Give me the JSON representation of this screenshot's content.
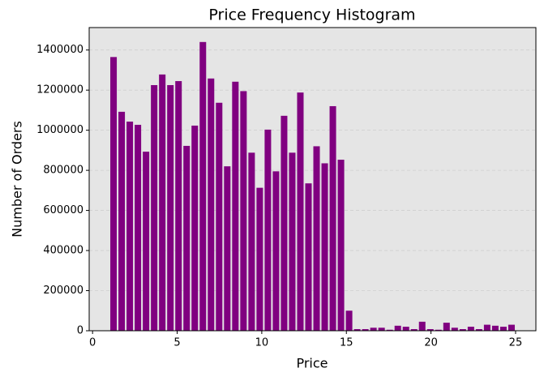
{
  "chart_data": {
    "type": "histogram",
    "title": "Price Frequency Histogram",
    "x_label": "Price",
    "y_label": "Number of Orders",
    "bins": [
      1,
      1.48,
      1.96,
      2.44,
      2.92,
      3.4,
      3.88,
      4.36,
      4.84,
      5.32,
      5.8,
      6.28,
      6.76,
      7.24,
      7.72,
      8.2,
      8.68,
      9.16,
      9.64,
      10.12,
      10.6,
      11.08,
      11.56,
      12.04,
      12.52,
      13,
      13.48,
      13.96,
      14.44,
      14.92,
      15.4,
      15.88,
      16.36,
      16.84,
      17.32,
      17.8,
      18.28,
      18.76,
      19.24,
      19.72,
      20.2,
      20.68,
      21.16,
      21.64,
      22.12,
      22.6,
      23.08,
      23.56,
      24.04,
      24.52,
      25
    ],
    "values": [
      1365000,
      1092000,
      1043000,
      1027000,
      893000,
      1225000,
      1278000,
      1225000,
      1245000,
      922000,
      1023000,
      1440000,
      1258000,
      1137000,
      820000,
      1242000,
      1195000,
      888000,
      713000,
      1003000,
      795000,
      1072000,
      888000,
      1188000,
      735000,
      920000,
      835000,
      1120000,
      853000,
      100000,
      8000,
      8000,
      15000,
      15000,
      5000,
      25000,
      20000,
      8000,
      45000,
      8000,
      5000,
      40000,
      15000,
      8000,
      20000,
      8000,
      30000,
      25000,
      20000,
      30000
    ],
    "color": "#800080",
    "xlim": [
      -0.2,
      26.2
    ],
    "xticks": [
      0,
      5,
      10,
      15,
      20,
      25
    ],
    "ylim": [
      0,
      1512000
    ],
    "yticks": [
      0,
      200000,
      400000,
      600000,
      800000,
      1000000,
      1200000,
      1400000
    ],
    "grid": true
  }
}
